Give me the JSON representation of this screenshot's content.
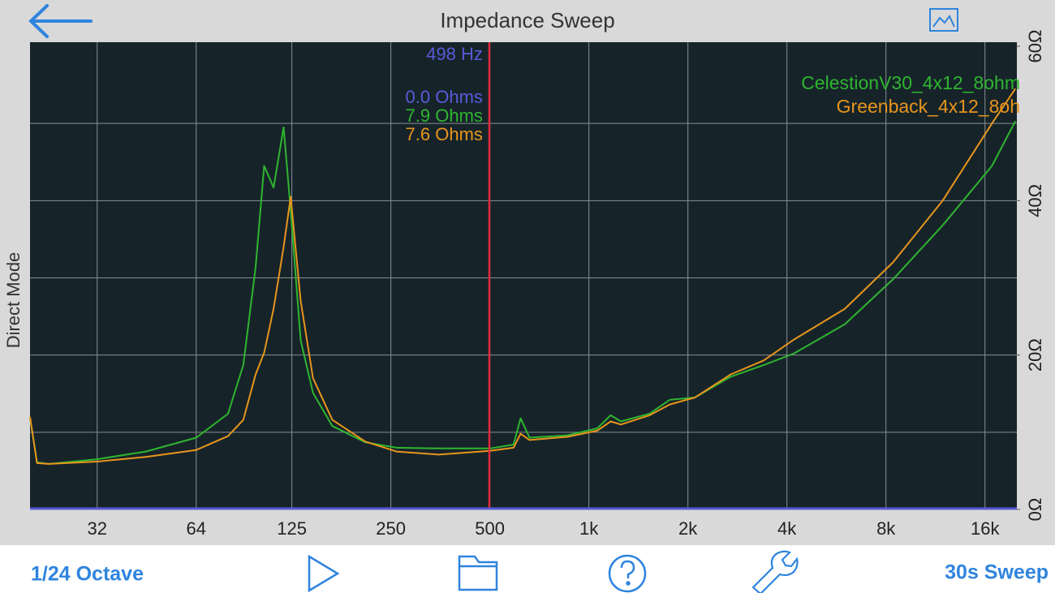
{
  "header": {
    "title": "Impedance Sweep"
  },
  "chart_data": {
    "type": "line",
    "y_label": "Direct Mode",
    "log_x": true,
    "xlim": [
      20,
      20000
    ],
    "xticks": [
      32,
      64,
      125,
      250,
      500,
      {
        "value": 1000,
        "label": "1k"
      },
      {
        "value": 2000,
        "label": "2k"
      },
      {
        "value": 4000,
        "label": "4k"
      },
      {
        "value": 8000,
        "label": "8k"
      },
      {
        "value": 16000,
        "label": "16k"
      }
    ],
    "ylim": [
      0,
      60
    ],
    "yticks": [
      {
        "value": 0,
        "label": "0Ω"
      },
      {
        "value": 20,
        "label": "20Ω"
      },
      {
        "value": 40,
        "label": "40Ω"
      },
      {
        "value": 60,
        "label": "60Ω"
      }
    ],
    "ygrid": [
      10,
      20,
      30,
      40,
      50
    ],
    "grid": true,
    "legend": "upper right",
    "x": [
      20,
      21,
      22.8,
      32,
      45,
      64,
      80,
      89,
      97,
      103,
      110,
      118,
      124,
      133,
      145,
      166,
      209,
      260,
      350,
      500,
      590,
      620,
      660,
      860,
      1060,
      1165,
      1250,
      1530,
      1760,
      2100,
      2700,
      3400,
      4200,
      6000,
      8400,
      11900,
      16800,
      19800
    ],
    "series": [
      {
        "name": "CelestionV30_4x12_8ohm",
        "color": "#2fb52f",
        "values": [
          11.9,
          6.1,
          5.9,
          6.5,
          7.5,
          9.3,
          12.4,
          18.7,
          31.4,
          44.5,
          41.7,
          49.5,
          38.7,
          21.9,
          15.1,
          10.8,
          8.7,
          8.0,
          7.9,
          7.9,
          8.4,
          11.8,
          9.3,
          9.6,
          10.5,
          12.2,
          11.4,
          12.4,
          14.2,
          14.5,
          17.2,
          18.7,
          20.2,
          24.0,
          29.8,
          36.8,
          44.5,
          50.3
        ]
      },
      {
        "name": "Greenback_4x12_8oh",
        "color": "#e8951c",
        "values": [
          12.0,
          6.0,
          5.9,
          6.2,
          6.8,
          7.7,
          9.5,
          11.6,
          17.5,
          20.3,
          26.0,
          34.0,
          40.5,
          27.0,
          17.0,
          11.6,
          8.8,
          7.5,
          7.1,
          7.6,
          8.0,
          9.8,
          9.0,
          9.4,
          10.2,
          11.4,
          11.0,
          12.2,
          13.6,
          14.5,
          17.5,
          19.3,
          22.0,
          26.0,
          32.0,
          40.0,
          50.0,
          54.5
        ]
      }
    ],
    "cursor": {
      "frequency": 498,
      "label": "498 Hz",
      "color": "#e0283c",
      "label_color": "#5a5ad8",
      "readings": [
        {
          "value": 0.0,
          "label": "0.0 Ohms",
          "color": "#5a5ad8"
        },
        {
          "value": 7.9,
          "label": "7.9 Ohms",
          "color": "#2fb52f"
        },
        {
          "value": 7.6,
          "label": "7.6 Ohms",
          "color": "#e8951c"
        }
      ]
    }
  },
  "toolbar": {
    "left": "1/24 Octave",
    "right": "30s Sweep"
  }
}
